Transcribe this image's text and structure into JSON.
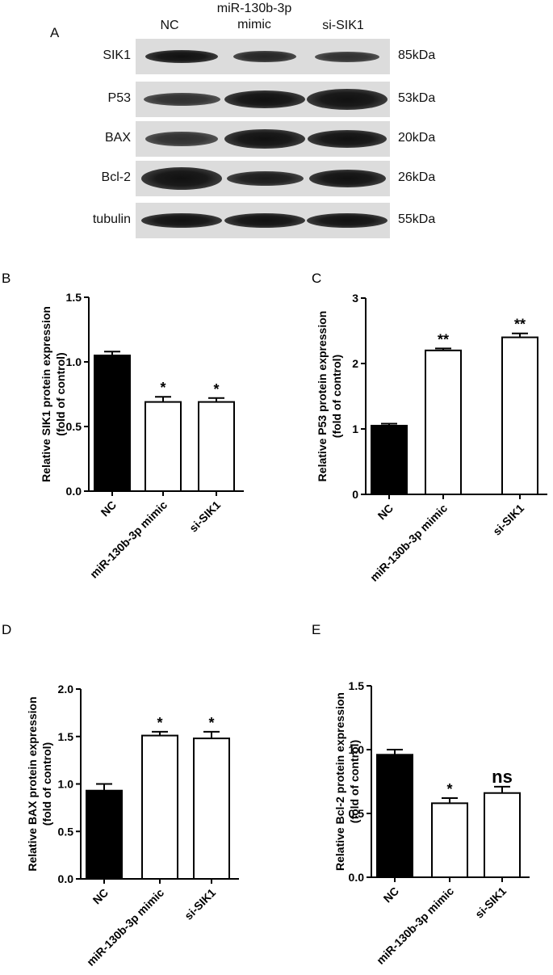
{
  "panel_a": {
    "letter": "A",
    "lanes": [
      "NC",
      "miR-130b-3p\nmimic",
      "si-SIK1"
    ],
    "lane_nc": "NC",
    "lane_mimic_line1": "miR-130b-3p",
    "lane_mimic_line2": "mimic",
    "lane_si": "si-SIK1",
    "rows": [
      {
        "protein": "SIK1",
        "kda": "85kDa"
      },
      {
        "protein": "P53",
        "kda": "53kDa"
      },
      {
        "protein": "BAX",
        "kda": "20kDa"
      },
      {
        "protein": "Bcl-2",
        "kda": "26kDa"
      },
      {
        "protein": "tubulin",
        "kda": "55kDa"
      }
    ]
  },
  "chart_data": [
    {
      "panel": "B",
      "type": "bar",
      "categories": [
        "NC",
        "miR-130b-3p mimic",
        "si-SIK1"
      ],
      "values": [
        1.05,
        0.69,
        0.69
      ],
      "errors": [
        0.03,
        0.04,
        0.03
      ],
      "significance": [
        "",
        "*",
        "*"
      ],
      "bar_fills": [
        "#000000",
        "#ffffff",
        "#ffffff"
      ],
      "ylabel_line1": "Relative SIK1 protein expression",
      "ylabel_line2": "(fold of control)",
      "ylim": [
        0,
        1.5
      ],
      "yticks": [
        "0.0",
        "0.5",
        "1.0",
        "1.5"
      ]
    },
    {
      "panel": "C",
      "type": "bar",
      "categories": [
        "NC",
        "miR-130b-3p mimic",
        "si-SIK1"
      ],
      "values": [
        1.05,
        2.2,
        2.4
      ],
      "errors": [
        0.03,
        0.03,
        0.06
      ],
      "significance": [
        "",
        "**",
        "**"
      ],
      "bar_fills": [
        "#000000",
        "#ffffff",
        "#ffffff"
      ],
      "ylabel_line1": "Relative P53 protein expression",
      "ylabel_line2": "(fold of control)",
      "ylim": [
        0,
        3
      ],
      "yticks": [
        "0",
        "1",
        "2",
        "3"
      ]
    },
    {
      "panel": "D",
      "type": "bar",
      "categories": [
        "NC",
        "miR-130b-3p mimic",
        "si-SIK1"
      ],
      "values": [
        0.93,
        1.51,
        1.48
      ],
      "errors": [
        0.07,
        0.04,
        0.07
      ],
      "significance": [
        "",
        "*",
        "*"
      ],
      "bar_fills": [
        "#000000",
        "#ffffff",
        "#ffffff"
      ],
      "ylabel_line1": "Relative BAX protein expression",
      "ylabel_line2": "(fold of control)",
      "ylim": [
        0,
        2.0
      ],
      "yticks": [
        "0.0",
        "0.5",
        "1.0",
        "1.5",
        "2.0"
      ]
    },
    {
      "panel": "E",
      "type": "bar",
      "categories": [
        "NC",
        "miR-130b-3p mimic",
        "si-SIK1"
      ],
      "values": [
        0.96,
        0.58,
        0.66
      ],
      "errors": [
        0.04,
        0.04,
        0.05
      ],
      "significance": [
        "",
        "*",
        "ns"
      ],
      "bar_fills": [
        "#000000",
        "#ffffff",
        "#ffffff"
      ],
      "ylabel_line1": "Relative Bcl-2 protein expression",
      "ylabel_line2": "(fold of control)",
      "ylim": [
        0,
        1.5
      ],
      "yticks": [
        "0.0",
        "0.5",
        "1.0",
        "1.5"
      ]
    }
  ]
}
